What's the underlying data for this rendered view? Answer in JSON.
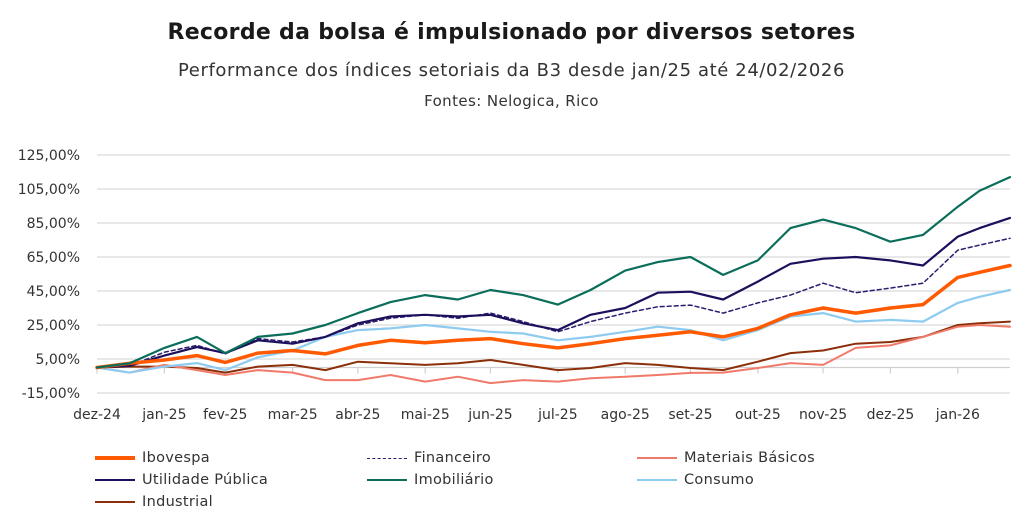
{
  "chart_data": {
    "type": "line",
    "title": "Recorde da bolsa é impulsionado por diversos setores",
    "subtitle": "Performance dos índices setoriais da B3 desde jan/25 até 24/02/2026",
    "source": "Fontes: Nelogica, Rico",
    "ylim": [
      -15,
      125
    ],
    "yticks": [
      -15,
      5,
      25,
      45,
      65,
      85,
      105,
      125
    ],
    "ytick_labels": [
      "-15,00%",
      "5,00%",
      "25,00%",
      "45,00%",
      "65,00%",
      "85,00%",
      "105,00%",
      "125,00%"
    ],
    "xticks": [
      "2024-12-31",
      "2025-01-31",
      "2025-02-28",
      "2025-03-31",
      "2025-04-30",
      "2025-05-31",
      "2025-06-30",
      "2025-07-31",
      "2025-08-31",
      "2025-09-30",
      "2025-10-31",
      "2025-11-30",
      "2025-12-31",
      "2026-01-31"
    ],
    "xtick_labels": [
      "dez-24",
      "jan-25",
      "fev-25",
      "mar-25",
      "abr-25",
      "mai-25",
      "jun-25",
      "jul-25",
      "ago-25",
      "set-25",
      "out-25",
      "nov-25",
      "dez-25",
      "jan-26"
    ],
    "grid": true,
    "legend_placement": "bottom",
    "x": [
      "2024-12-31",
      "2025-01-15",
      "2025-01-31",
      "2025-02-15",
      "2025-02-28",
      "2025-03-15",
      "2025-03-31",
      "2025-04-15",
      "2025-04-30",
      "2025-05-15",
      "2025-05-31",
      "2025-06-15",
      "2025-06-30",
      "2025-07-15",
      "2025-07-31",
      "2025-08-15",
      "2025-08-31",
      "2025-09-15",
      "2025-09-30",
      "2025-10-15",
      "2025-10-31",
      "2025-11-15",
      "2025-11-30",
      "2025-12-15",
      "2025-12-31",
      "2026-01-15",
      "2026-01-31",
      "2026-02-10",
      "2026-02-24"
    ],
    "series": [
      {
        "name": "Ibovespa",
        "color": "#ff5a00",
        "dash": false,
        "width": 3.5,
        "values": [
          0,
          2.5,
          4.4,
          7,
          3,
          8.5,
          10,
          8,
          13,
          16,
          14.6,
          16,
          17,
          14,
          11.5,
          14,
          17,
          19,
          21,
          18,
          23,
          31,
          35,
          32,
          35,
          37,
          53,
          56,
          60
        ]
      },
      {
        "name": "Financeiro",
        "color": "#2a1e6e",
        "dash": true,
        "width": 1.5,
        "values": [
          0,
          1,
          9,
          13,
          8,
          17,
          15,
          18,
          25,
          29,
          31,
          29,
          32,
          27,
          21,
          27,
          32,
          35.7,
          36.7,
          32,
          38,
          42.6,
          49.6,
          44,
          46.7,
          49.6,
          69,
          72,
          76
        ]
      },
      {
        "name": "Materiais Básicos",
        "color": "#f07a6a",
        "dash": false,
        "width": 2,
        "values": [
          0,
          -3,
          1.5,
          -1.5,
          -4.4,
          -1.5,
          -3,
          -7.4,
          -7.4,
          -4.4,
          -8.3,
          -5.4,
          -9.2,
          -7.4,
          -8.3,
          -6.3,
          -5.4,
          -4.4,
          -3.2,
          -3,
          -0.3,
          2.6,
          1.5,
          11.5,
          13,
          18,
          24,
          25,
          24
        ]
      },
      {
        "name": "Utilidade Pública",
        "color": "#1e0f5c",
        "dash": false,
        "width": 2.2,
        "values": [
          0,
          1,
          7,
          12,
          8.5,
          16,
          14,
          18,
          26,
          30,
          31,
          30,
          31,
          26,
          22,
          31,
          35,
          44,
          44.6,
          40,
          50.5,
          61,
          64,
          65,
          63,
          60,
          77,
          82,
          88
        ]
      },
      {
        "name": "Imobiliário",
        "color": "#0b6e5a",
        "dash": false,
        "width": 2.2,
        "values": [
          0,
          2.5,
          11.5,
          18,
          8.5,
          18,
          20,
          25,
          32,
          38.5,
          42.6,
          40,
          45.6,
          42.6,
          37,
          45.6,
          57,
          62,
          65,
          54.5,
          63,
          82,
          87,
          82,
          74,
          78,
          94.6,
          104,
          112
        ]
      },
      {
        "name": "Consumo",
        "color": "#8ecbf0",
        "dash": false,
        "width": 2.2,
        "values": [
          0,
          -3,
          0.5,
          2.6,
          -1.5,
          6,
          10,
          18,
          22,
          23,
          25,
          23,
          21,
          20,
          16,
          18,
          21,
          24,
          22,
          16,
          22,
          30,
          32,
          27,
          28,
          27,
          38,
          41.6,
          45.6
        ]
      },
      {
        "name": "Industrial",
        "color": "#8b2e0a",
        "dash": false,
        "width": 2,
        "values": [
          0,
          0.5,
          0.5,
          -0.3,
          -3,
          0.5,
          1.5,
          -1.5,
          3.4,
          2.5,
          1.5,
          2.5,
          4.4,
          1.5,
          -1.5,
          -0.3,
          2.6,
          1.5,
          -0.3,
          -1.5,
          3.4,
          8.5,
          10,
          14,
          15,
          18,
          25,
          26,
          27
        ]
      }
    ]
  }
}
